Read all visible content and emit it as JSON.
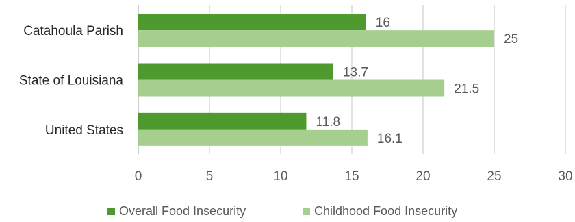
{
  "chart_data": {
    "type": "bar",
    "orientation": "horizontal",
    "categories": [
      "Catahoula Parish",
      "State of Louisiana",
      "United States"
    ],
    "series": [
      {
        "name": "Overall Food Insecurity",
        "values": [
          16,
          13.7,
          11.8
        ],
        "labels": [
          "16",
          "13.7",
          "11.8"
        ],
        "color": "#4e9a2f"
      },
      {
        "name": "Childhood Food Insecurity",
        "values": [
          25,
          21.5,
          16.1
        ],
        "labels": [
          "25",
          "21.5",
          "16.1"
        ],
        "color": "#a6cf8f"
      }
    ],
    "xlim": [
      0,
      30
    ],
    "xticks": [
      0,
      5,
      10,
      15,
      20,
      25,
      30
    ],
    "xtick_labels": [
      "0",
      "5",
      "10",
      "15",
      "20",
      "25",
      "30"
    ],
    "grid": "vertical",
    "legend": "bottom",
    "title": "",
    "xlabel": "",
    "ylabel": ""
  }
}
